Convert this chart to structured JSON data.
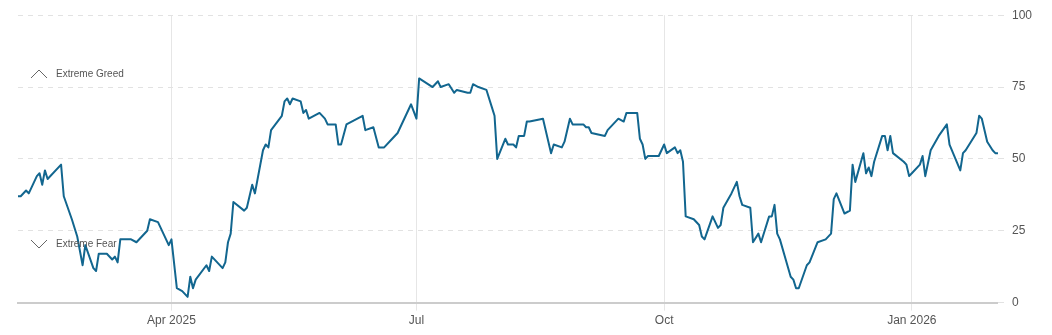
{
  "chart_data": {
    "type": "line",
    "x": [
      "2025-02-03",
      "2025-02-04",
      "2025-02-06",
      "2025-02-07",
      "2025-02-10",
      "2025-02-11",
      "2025-02-12",
      "2025-02-13",
      "2025-02-14",
      "2025-02-19",
      "2025-02-20",
      "2025-02-23",
      "2025-02-25",
      "2025-02-27",
      "2025-02-28",
      "2025-03-03",
      "2025-03-04",
      "2025-03-05",
      "2025-03-08",
      "2025-03-10",
      "2025-03-11",
      "2025-03-12",
      "2025-03-13",
      "2025-03-17",
      "2025-03-19",
      "2025-03-23",
      "2025-03-24",
      "2025-03-27",
      "2025-03-29",
      "2025-03-31",
      "2025-04-01",
      "2025-04-03",
      "2025-04-05",
      "2025-04-07",
      "2025-04-08",
      "2025-04-09",
      "2025-04-10",
      "2025-04-14",
      "2025-04-15",
      "2025-04-16",
      "2025-04-20",
      "2025-04-21",
      "2025-04-22",
      "2025-04-23",
      "2025-04-24",
      "2025-04-28",
      "2025-04-29",
      "2025-05-01",
      "2025-05-02",
      "2025-05-05",
      "2025-05-06",
      "2025-05-07",
      "2025-05-08",
      "2025-05-12",
      "2025-05-13",
      "2025-05-14",
      "2025-05-15",
      "2025-05-16",
      "2025-05-19",
      "2025-05-20",
      "2025-05-21",
      "2025-05-22",
      "2025-05-26",
      "2025-05-28",
      "2025-05-29",
      "2025-06-01",
      "2025-06-02",
      "2025-06-03",
      "2025-06-05",
      "2025-06-11",
      "2025-06-12",
      "2025-06-15",
      "2025-06-17",
      "2025-06-19",
      "2025-06-22",
      "2025-06-24",
      "2025-06-26",
      "2025-06-29",
      "2025-07-01",
      "2025-07-02",
      "2025-07-07",
      "2025-07-09",
      "2025-07-10",
      "2025-07-13",
      "2025-07-15",
      "2025-07-16",
      "2025-07-20",
      "2025-07-21",
      "2025-07-22",
      "2025-07-24",
      "2025-07-27",
      "2025-07-29",
      "2025-07-30",
      "2025-07-31",
      "2025-08-03",
      "2025-08-04",
      "2025-08-06",
      "2025-08-07",
      "2025-08-08",
      "2025-08-10",
      "2025-08-11",
      "2025-08-12",
      "2025-08-17",
      "2025-08-20",
      "2025-08-21",
      "2025-08-24",
      "2025-08-25",
      "2025-08-27",
      "2025-08-28",
      "2025-09-01",
      "2025-09-02",
      "2025-09-03",
      "2025-09-04",
      "2025-09-09",
      "2025-09-10",
      "2025-09-14",
      "2025-09-16",
      "2025-09-17",
      "2025-09-21",
      "2025-09-22",
      "2025-09-23",
      "2025-09-24",
      "2025-09-25",
      "2025-09-29",
      "2025-09-30",
      "2025-10-01",
      "2025-10-02",
      "2025-10-05",
      "2025-10-06",
      "2025-10-07",
      "2025-10-08",
      "2025-10-09",
      "2025-10-12",
      "2025-10-14",
      "2025-10-15",
      "2025-10-16",
      "2025-10-19",
      "2025-10-21",
      "2025-10-22",
      "2025-10-23",
      "2025-10-26",
      "2025-10-28",
      "2025-10-29",
      "2025-10-30",
      "2025-11-02",
      "2025-11-03",
      "2025-11-05",
      "2025-11-06",
      "2025-11-09",
      "2025-11-10",
      "2025-11-11",
      "2025-11-12",
      "2025-11-13",
      "2025-11-17",
      "2025-11-18",
      "2025-11-19",
      "2025-11-20",
      "2025-11-23",
      "2025-11-24",
      "2025-11-27",
      "2025-11-30",
      "2025-12-02",
      "2025-12-03",
      "2025-12-04",
      "2025-12-07",
      "2025-12-09",
      "2025-12-10",
      "2025-12-11",
      "2025-12-14",
      "2025-12-15",
      "2025-12-16",
      "2025-12-17",
      "2025-12-18",
      "2025-12-21",
      "2025-12-22",
      "2025-12-23",
      "2025-12-24",
      "2025-12-25",
      "2025-12-29",
      "2025-12-30",
      "2025-12-31",
      "2026-01-01",
      "2026-01-04",
      "2026-01-05",
      "2026-01-06",
      "2026-01-08",
      "2026-01-11",
      "2026-01-14",
      "2026-01-15",
      "2026-01-19",
      "2026-01-20",
      "2026-01-21",
      "2026-01-25",
      "2026-01-26",
      "2026-01-27",
      "2026-01-29",
      "2026-01-31",
      "2026-02-01",
      "2026-02-02"
    ],
    "series": [
      {
        "color": "#12668f",
        "values": [
          37,
          37,
          39,
          38,
          44,
          45,
          41,
          46,
          43,
          48,
          37,
          29,
          23,
          13,
          20,
          12,
          11,
          17,
          17,
          15,
          16,
          14,
          22,
          22,
          21,
          25,
          29,
          28,
          24,
          20,
          22,
          5,
          4,
          2,
          9,
          5,
          8,
          13,
          11,
          16,
          12,
          14,
          21,
          24,
          35,
          32,
          33,
          41,
          38,
          53,
          55,
          54,
          60,
          65,
          70,
          71,
          69,
          71,
          70,
          66,
          67,
          64,
          66,
          64,
          62,
          62,
          55,
          55,
          62,
          65,
          60,
          61,
          54,
          54,
          57,
          59,
          63,
          69,
          64,
          78,
          75,
          77,
          75,
          76,
          73,
          74,
          73,
          73,
          76,
          75,
          74,
          68,
          65,
          50,
          57,
          55,
          55,
          54,
          58,
          58,
          63,
          63,
          64,
          52,
          55,
          54,
          56,
          64,
          62,
          62,
          61,
          61,
          59,
          58,
          60,
          64,
          63,
          66,
          66,
          57,
          55,
          50,
          51,
          51,
          53,
          55,
          52,
          54,
          52,
          53,
          49,
          30,
          29,
          27,
          23,
          22,
          30,
          26,
          27,
          33,
          38,
          42,
          37,
          34,
          33,
          21,
          24,
          21,
          30,
          30,
          34,
          24,
          22,
          9,
          8,
          5,
          5,
          13,
          14,
          21,
          22,
          24,
          36,
          38,
          31,
          32,
          48,
          42,
          52,
          45,
          47,
          44,
          49,
          58,
          58,
          53,
          58,
          52,
          49,
          48,
          44,
          45,
          48,
          51,
          44,
          53,
          58,
          62,
          55,
          46,
          52,
          53,
          59,
          65,
          64,
          56,
          53,
          52,
          52
        ]
      }
    ],
    "xlim": [
      "2025-02-03",
      "2026-02-02"
    ],
    "xticks": [
      {
        "value": "2025-04-01",
        "label": "Apr 2025"
      },
      {
        "value": "2025-07-01",
        "label": "Jul"
      },
      {
        "value": "2025-10-01",
        "label": "Oct"
      },
      {
        "value": "2026-01-01",
        "label": "Jan 2026"
      }
    ],
    "ylim": [
      0,
      100
    ],
    "yticks": [
      0,
      25,
      50,
      75,
      100
    ],
    "grid": true,
    "annotations": [
      "Extreme Greed",
      "Extreme Fear"
    ]
  }
}
